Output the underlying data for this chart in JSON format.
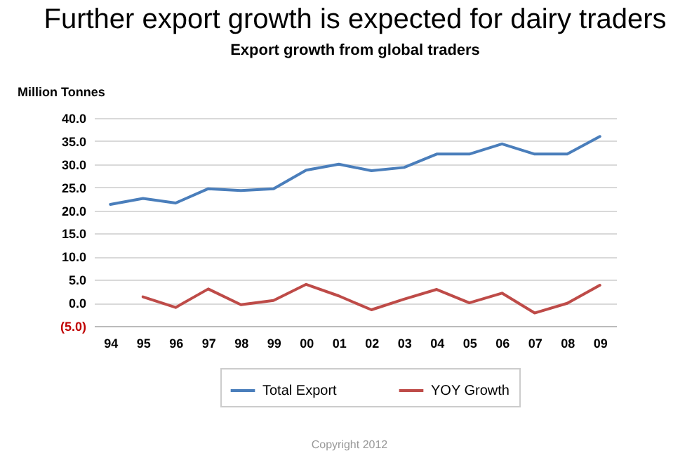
{
  "chart_data": {
    "type": "line",
    "title": "Further export growth is expected for dairy traders",
    "subtitle": "Export growth from global traders",
    "ylabel": "Million Tonnes",
    "categories": [
      "94",
      "95",
      "96",
      "97",
      "98",
      "99",
      "00",
      "01",
      "02",
      "03",
      "04",
      "05",
      "06",
      "07",
      "08",
      "09"
    ],
    "series": [
      {
        "name": "Total Export",
        "color": "#4a7ebb",
        "values": [
          21.3,
          22.6,
          21.6,
          24.7,
          24.3,
          24.7,
          28.7,
          30.0,
          28.6,
          29.3,
          32.2,
          32.2,
          34.4,
          32.2,
          32.2,
          36.0
        ]
      },
      {
        "name": "YOY Growth",
        "color": "#be4b48",
        "values": [
          null,
          1.3,
          -1.0,
          3.0,
          -0.4,
          0.5,
          4.0,
          1.5,
          -1.5,
          0.8,
          2.9,
          0.0,
          2.1,
          -2.2,
          -0.1,
          3.8
        ]
      }
    ],
    "ylim": [
      -5,
      40
    ],
    "yticks": [
      {
        "value": -5,
        "label": "(5.0)"
      },
      {
        "value": 0,
        "label": "0.0"
      },
      {
        "value": 5,
        "label": "5.0"
      },
      {
        "value": 10,
        "label": "10.0"
      },
      {
        "value": 15,
        "label": "15.0"
      },
      {
        "value": 20,
        "label": "20.0"
      },
      {
        "value": 25,
        "label": "25.0"
      },
      {
        "value": 30,
        "label": "30.0"
      },
      {
        "value": 35,
        "label": "35.0"
      },
      {
        "value": 40,
        "label": "40.0"
      }
    ],
    "grid": "y",
    "legend": "bottom",
    "marker": "none",
    "line_style": "solid",
    "annotations": [
      "Copyright 2012"
    ]
  }
}
